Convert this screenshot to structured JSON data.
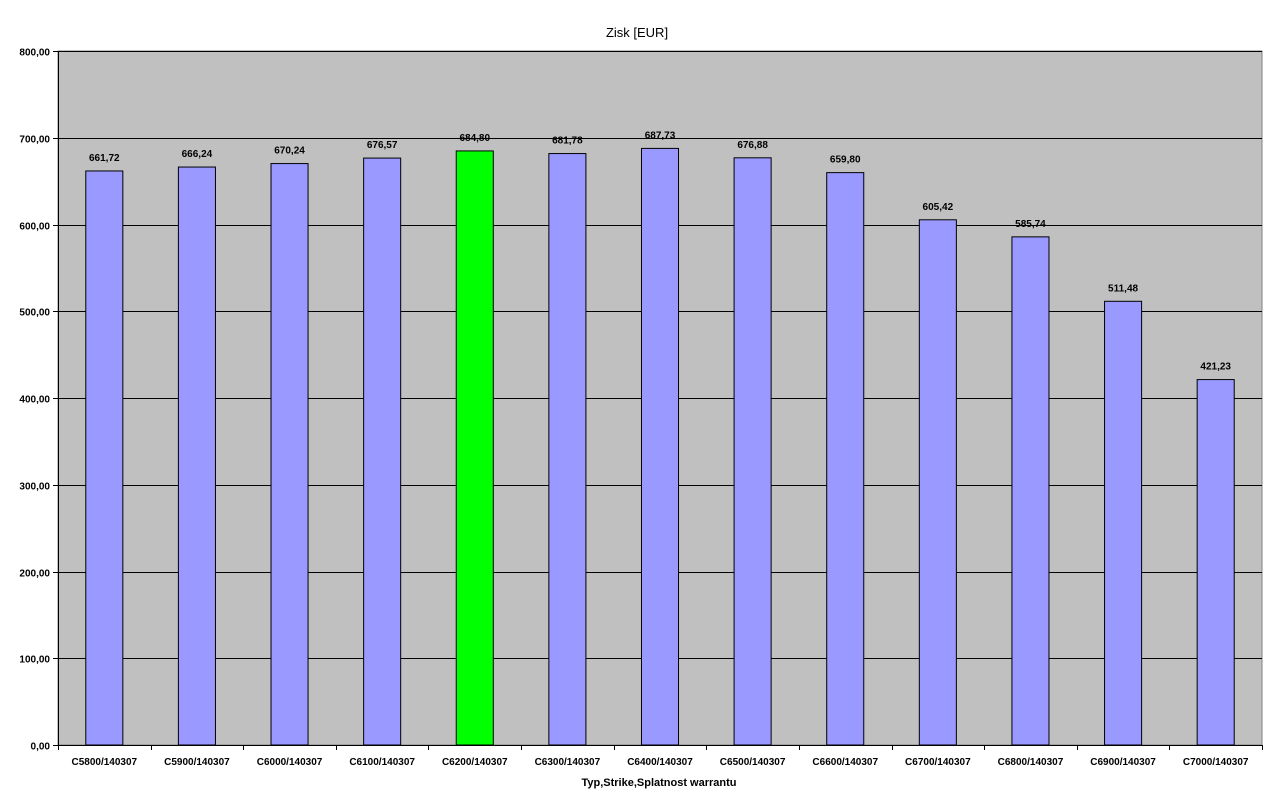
{
  "chart_data": {
    "type": "bar",
    "title": "Zisk [EUR]",
    "xlabel": "Typ,Strike,Splatnost warrantu",
    "ylabel": "",
    "ylim": [
      0,
      800
    ],
    "yticks": [
      0,
      100,
      200,
      300,
      400,
      500,
      600,
      700,
      800
    ],
    "ytick_labels": [
      "0,00",
      "100,00",
      "200,00",
      "300,00",
      "400,00",
      "500,00",
      "600,00",
      "700,00",
      "800,00"
    ],
    "grid": true,
    "legend": "none",
    "categories": [
      "C5800/140307",
      "C5900/140307",
      "C6000/140307",
      "C6100/140307",
      "C6200/140307",
      "C6300/140307",
      "C6400/140307",
      "C6500/140307",
      "C6600/140307",
      "C6700/140307",
      "C6800/140307",
      "C6900/140307",
      "C7000/140307"
    ],
    "values": [
      661.72,
      666.24,
      670.24,
      676.57,
      684.8,
      681.78,
      687.73,
      676.88,
      659.8,
      605.42,
      585.74,
      511.48,
      421.23
    ],
    "value_labels": [
      "661,72",
      "666,24",
      "670,24",
      "676,57",
      "684,80",
      "681,78",
      "687,73",
      "676,88",
      "659,80",
      "605,42",
      "585,74",
      "511,48",
      "421,23"
    ],
    "highlight_index": 4,
    "colors": {
      "bar": "#9999ff",
      "highlight_bar": "#00ff00",
      "plot_background": "#c0c0c0",
      "gridline": "#000000",
      "bar_border": "#000000"
    }
  }
}
